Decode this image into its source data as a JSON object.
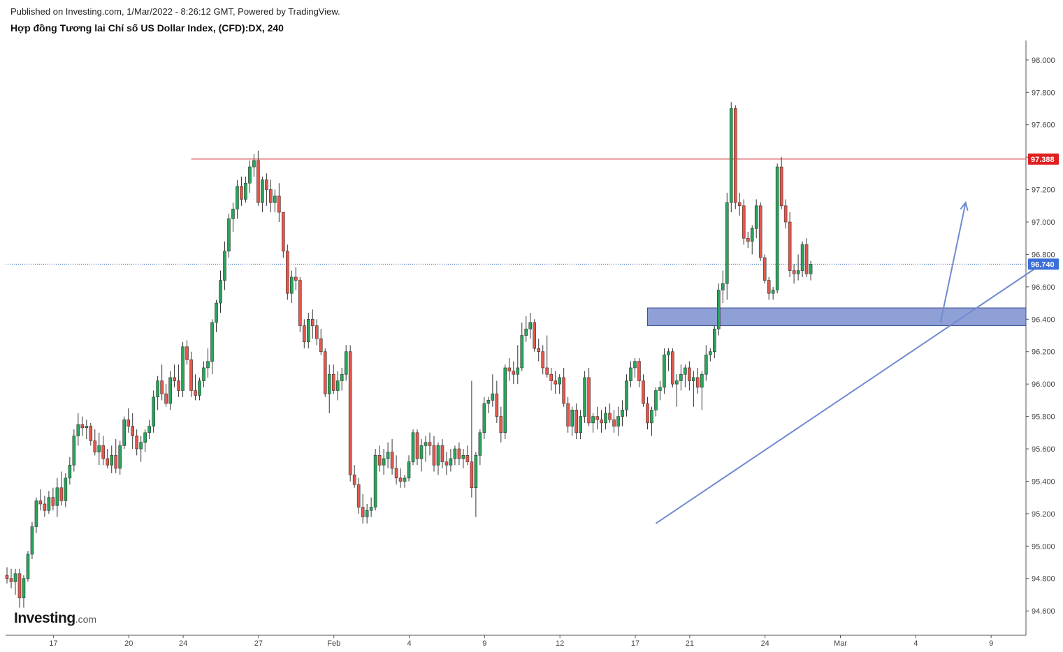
{
  "header": {
    "published": "Published on Investing.com, 1/Mar/2022 - 8:26:12 GMT, Powered by TradingView.",
    "title": "Hợp đồng Tương lai Chỉ số US Dollar Index, (CFD):DX, 240"
  },
  "logo": {
    "main": "Investing",
    "tld": ".com"
  },
  "colors": {
    "up": "#26a65b",
    "down": "#e8564b",
    "resistance_line": "#d32f2f",
    "current_price_line": "#2a5caa",
    "zone_fill": "#7b8fd0",
    "trendline": "#6f8bcf"
  },
  "chart_data": {
    "type": "candlestick",
    "symbol": "DX",
    "interval": "240",
    "ylim": [
      94.45,
      98.12
    ],
    "y_ticks": [
      94.6,
      94.8,
      95.0,
      95.2,
      95.4,
      95.6,
      95.8,
      96.0,
      96.2,
      96.4,
      96.6,
      96.8,
      97.0,
      97.2,
      97.4,
      97.6,
      97.8,
      98.0
    ],
    "y_tick_labels": [
      "94.600",
      "94.800",
      "95.000",
      "95.200",
      "95.400",
      "95.600",
      "95.800",
      "96.000",
      "96.200",
      "96.400",
      "96.600",
      "96.800",
      "97.000",
      "97.200",
      "97.400",
      "97.600",
      "97.800",
      "98.000"
    ],
    "x_tick_labels": [
      {
        "label": "17",
        "bar": 11
      },
      {
        "label": "20",
        "bar": 29
      },
      {
        "label": "24",
        "bar": 42
      },
      {
        "label": "27",
        "bar": 60
      },
      {
        "label": "Feb",
        "bar": 78
      },
      {
        "label": "4",
        "bar": 96
      },
      {
        "label": "9",
        "bar": 114
      },
      {
        "label": "12",
        "bar": 132
      },
      {
        "label": "17",
        "bar": 150
      },
      {
        "label": "21",
        "bar": 163
      },
      {
        "label": "24",
        "bar": 181
      },
      {
        "label": "Mar",
        "bar": 199
      },
      {
        "label": "4",
        "bar": 217
      },
      {
        "label": "9",
        "bar": 235
      }
    ],
    "candles_ohlc": [
      [
        94.82,
        94.87,
        94.77,
        94.8
      ],
      [
        94.8,
        94.86,
        94.74,
        94.78
      ],
      [
        94.78,
        94.86,
        94.7,
        94.83
      ],
      [
        94.83,
        94.86,
        94.62,
        94.68
      ],
      [
        94.68,
        94.82,
        94.62,
        94.8
      ],
      [
        94.8,
        94.97,
        94.78,
        94.95
      ],
      [
        94.95,
        95.15,
        94.92,
        95.12
      ],
      [
        95.12,
        95.3,
        95.08,
        95.28
      ],
      [
        95.28,
        95.35,
        95.22,
        95.26
      ],
      [
        95.26,
        95.31,
        95.18,
        95.22
      ],
      [
        95.22,
        95.34,
        95.2,
        95.3
      ],
      [
        95.3,
        95.36,
        95.22,
        95.25
      ],
      [
        95.25,
        95.42,
        95.18,
        95.36
      ],
      [
        95.36,
        95.46,
        95.25,
        95.28
      ],
      [
        95.28,
        95.45,
        95.24,
        95.42
      ],
      [
        95.42,
        95.55,
        95.38,
        95.5
      ],
      [
        95.5,
        95.72,
        95.46,
        95.68
      ],
      [
        95.68,
        95.82,
        95.62,
        95.75
      ],
      [
        95.75,
        95.8,
        95.68,
        95.73
      ],
      [
        95.73,
        95.78,
        95.66,
        95.74
      ],
      [
        95.74,
        95.76,
        95.62,
        95.65
      ],
      [
        95.65,
        95.72,
        95.56,
        95.58
      ],
      [
        95.58,
        95.7,
        95.5,
        95.62
      ],
      [
        95.62,
        95.68,
        95.5,
        95.54
      ],
      [
        95.54,
        95.6,
        95.48,
        95.5
      ],
      [
        95.5,
        95.62,
        95.45,
        95.56
      ],
      [
        95.56,
        95.66,
        95.45,
        95.48
      ],
      [
        95.48,
        95.65,
        95.44,
        95.62
      ],
      [
        95.62,
        95.8,
        95.6,
        95.78
      ],
      [
        95.78,
        95.85,
        95.7,
        95.74
      ],
      [
        95.74,
        95.82,
        95.6,
        95.68
      ],
      [
        95.68,
        95.72,
        95.56,
        95.6
      ],
      [
        95.6,
        95.68,
        95.52,
        95.64
      ],
      [
        95.64,
        95.72,
        95.58,
        95.7
      ],
      [
        95.7,
        95.78,
        95.66,
        95.74
      ],
      [
        95.74,
        95.96,
        95.7,
        95.92
      ],
      [
        95.92,
        96.05,
        95.84,
        96.02
      ],
      [
        96.02,
        96.12,
        95.9,
        95.94
      ],
      [
        95.94,
        96.0,
        95.86,
        95.88
      ],
      [
        95.88,
        96.08,
        95.84,
        96.04
      ],
      [
        96.04,
        96.12,
        95.98,
        96.02
      ],
      [
        96.02,
        96.12,
        95.92,
        95.96
      ],
      [
        95.96,
        96.26,
        95.92,
        96.23
      ],
      [
        96.23,
        96.27,
        96.12,
        96.15
      ],
      [
        96.15,
        96.2,
        95.92,
        95.96
      ],
      [
        95.96,
        96.06,
        95.9,
        95.93
      ],
      [
        95.93,
        96.04,
        95.9,
        96.02
      ],
      [
        96.02,
        96.14,
        95.98,
        96.1
      ],
      [
        96.1,
        96.22,
        96.04,
        96.14
      ],
      [
        96.14,
        96.4,
        96.06,
        96.38
      ],
      [
        96.38,
        96.52,
        96.32,
        96.5
      ],
      [
        96.5,
        96.7,
        96.44,
        96.64
      ],
      [
        96.64,
        96.88,
        96.58,
        96.82
      ],
      [
        96.82,
        97.05,
        96.78,
        97.02
      ],
      [
        97.02,
        97.12,
        96.94,
        97.08
      ],
      [
        97.08,
        97.26,
        97.02,
        97.22
      ],
      [
        97.22,
        97.28,
        97.1,
        97.14
      ],
      [
        97.14,
        97.28,
        97.12,
        97.24
      ],
      [
        97.24,
        97.38,
        97.18,
        97.34
      ],
      [
        97.34,
        97.42,
        97.28,
        97.38
      ],
      [
        97.38,
        97.44,
        97.1,
        97.12
      ],
      [
        97.12,
        97.28,
        97.06,
        97.26
      ],
      [
        97.26,
        97.3,
        97.1,
        97.2
      ],
      [
        97.2,
        97.26,
        97.06,
        97.12
      ],
      [
        97.12,
        97.2,
        97.06,
        97.16
      ],
      [
        97.16,
        97.24,
        97.0,
        97.06
      ],
      [
        97.06,
        96.94,
        96.78,
        96.82
      ],
      [
        96.82,
        96.86,
        96.52,
        96.56
      ],
      [
        96.56,
        96.7,
        96.5,
        96.66
      ],
      [
        96.66,
        96.72,
        96.58,
        96.64
      ],
      [
        96.64,
        96.66,
        96.32,
        96.36
      ],
      [
        96.36,
        96.4,
        96.22,
        96.26
      ],
      [
        96.26,
        96.44,
        96.22,
        96.4
      ],
      [
        96.4,
        96.46,
        96.28,
        96.36
      ],
      [
        96.36,
        96.4,
        96.24,
        96.28
      ],
      [
        96.28,
        96.34,
        96.18,
        96.2
      ],
      [
        96.2,
        96.22,
        95.92,
        95.94
      ],
      [
        95.94,
        96.12,
        95.82,
        96.06
      ],
      [
        96.06,
        96.12,
        95.94,
        95.96
      ],
      [
        95.96,
        96.08,
        95.9,
        96.02
      ],
      [
        96.02,
        96.1,
        95.96,
        96.06
      ],
      [
        96.06,
        96.24,
        96.02,
        96.2
      ],
      [
        96.2,
        96.24,
        95.4,
        95.44
      ],
      [
        95.44,
        95.5,
        95.36,
        95.38
      ],
      [
        95.38,
        95.42,
        95.2,
        95.24
      ],
      [
        95.24,
        95.32,
        95.14,
        95.18
      ],
      [
        95.18,
        95.26,
        95.14,
        95.22
      ],
      [
        95.22,
        95.3,
        95.18,
        95.24
      ],
      [
        95.24,
        95.6,
        95.22,
        95.56
      ],
      [
        95.56,
        95.62,
        95.46,
        95.5
      ],
      [
        95.5,
        95.6,
        95.44,
        95.54
      ],
      [
        95.54,
        95.64,
        95.48,
        95.58
      ],
      [
        95.58,
        95.66,
        95.44,
        95.48
      ],
      [
        95.48,
        95.56,
        95.38,
        95.42
      ],
      [
        95.42,
        95.48,
        95.36,
        95.4
      ],
      [
        95.4,
        95.44,
        95.36,
        95.42
      ],
      [
        95.42,
        95.56,
        95.4,
        95.52
      ],
      [
        95.52,
        95.72,
        95.5,
        95.7
      ],
      [
        95.7,
        95.72,
        95.5,
        95.54
      ],
      [
        95.54,
        95.66,
        95.46,
        95.62
      ],
      [
        95.62,
        95.68,
        95.52,
        95.64
      ],
      [
        95.64,
        95.7,
        95.56,
        95.62
      ],
      [
        95.62,
        95.68,
        95.46,
        95.5
      ],
      [
        95.5,
        95.64,
        95.44,
        95.62
      ],
      [
        95.62,
        95.66,
        95.48,
        95.52
      ],
      [
        95.52,
        95.58,
        95.44,
        95.5
      ],
      [
        95.5,
        95.6,
        95.46,
        95.54
      ],
      [
        95.54,
        95.62,
        95.5,
        95.6
      ],
      [
        95.6,
        95.64,
        95.5,
        95.54
      ],
      [
        95.54,
        95.6,
        95.48,
        95.56
      ],
      [
        95.56,
        95.62,
        95.5,
        95.52
      ],
      [
        95.52,
        96.02,
        95.3,
        95.36
      ],
      [
        95.36,
        95.58,
        95.18,
        95.56
      ],
      [
        95.56,
        95.72,
        95.5,
        95.7
      ],
      [
        95.7,
        95.92,
        95.66,
        95.88
      ],
      [
        95.88,
        95.92,
        95.82,
        95.9
      ],
      [
        95.9,
        96.06,
        95.86,
        95.94
      ],
      [
        95.94,
        96.02,
        95.76,
        95.8
      ],
      [
        95.8,
        95.86,
        95.64,
        95.7
      ],
      [
        95.7,
        96.12,
        95.66,
        96.1
      ],
      [
        96.1,
        96.16,
        96.02,
        96.08
      ],
      [
        96.08,
        96.14,
        96.0,
        96.06
      ],
      [
        96.06,
        96.24,
        96.0,
        96.1
      ],
      [
        96.1,
        96.38,
        96.08,
        96.3
      ],
      [
        96.3,
        96.42,
        96.26,
        96.34
      ],
      [
        96.34,
        96.44,
        96.28,
        96.38
      ],
      [
        96.38,
        96.4,
        96.2,
        96.22
      ],
      [
        96.22,
        96.28,
        96.14,
        96.2
      ],
      [
        96.2,
        96.24,
        96.06,
        96.1
      ],
      [
        96.1,
        96.3,
        96.04,
        96.06
      ],
      [
        96.06,
        96.1,
        95.96,
        96.02
      ],
      [
        96.02,
        96.08,
        95.94,
        96.0
      ],
      [
        96.0,
        96.06,
        95.94,
        96.04
      ],
      [
        96.04,
        96.1,
        95.86,
        95.88
      ],
      [
        95.88,
        95.92,
        95.7,
        95.74
      ],
      [
        95.74,
        95.86,
        95.68,
        95.84
      ],
      [
        95.84,
        95.88,
        95.66,
        95.7
      ],
      [
        95.7,
        95.84,
        95.66,
        95.8
      ],
      [
        95.8,
        96.08,
        95.76,
        96.04
      ],
      [
        96.04,
        96.1,
        95.74,
        95.76
      ],
      [
        95.76,
        95.82,
        95.7,
        95.8
      ],
      [
        95.8,
        95.86,
        95.72,
        95.78
      ],
      [
        95.78,
        95.84,
        95.7,
        95.76
      ],
      [
        95.76,
        95.86,
        95.72,
        95.82
      ],
      [
        95.82,
        95.88,
        95.76,
        95.78
      ],
      [
        95.78,
        95.84,
        95.7,
        95.74
      ],
      [
        95.74,
        95.86,
        95.68,
        95.8
      ],
      [
        95.8,
        95.9,
        95.74,
        95.84
      ],
      [
        95.84,
        96.06,
        95.8,
        96.02
      ],
      [
        96.02,
        96.14,
        95.98,
        96.1
      ],
      [
        96.1,
        96.16,
        96.04,
        96.14
      ],
      [
        96.14,
        96.16,
        95.98,
        96.02
      ],
      [
        96.02,
        96.06,
        95.86,
        95.88
      ],
      [
        95.88,
        95.92,
        95.72,
        95.76
      ],
      [
        95.76,
        95.86,
        95.68,
        95.84
      ],
      [
        95.84,
        95.98,
        95.8,
        95.96
      ],
      [
        95.96,
        96.02,
        95.9,
        95.98
      ],
      [
        95.98,
        96.22,
        95.94,
        96.18
      ],
      [
        96.18,
        96.22,
        96.08,
        96.2
      ],
      [
        96.2,
        96.22,
        95.98,
        96.0
      ],
      [
        96.0,
        96.06,
        95.86,
        96.02
      ],
      [
        96.02,
        96.12,
        95.96,
        96.06
      ],
      [
        96.06,
        96.12,
        95.98,
        96.1
      ],
      [
        96.1,
        96.14,
        95.96,
        96.02
      ],
      [
        96.02,
        96.08,
        95.86,
        96.04
      ],
      [
        96.04,
        96.1,
        95.94,
        95.98
      ],
      [
        95.98,
        96.08,
        95.84,
        96.06
      ],
      [
        96.06,
        96.24,
        96.02,
        96.18
      ],
      [
        96.18,
        96.22,
        96.14,
        96.2
      ],
      [
        96.2,
        96.36,
        96.16,
        96.34
      ],
      [
        96.34,
        96.62,
        96.3,
        96.58
      ],
      [
        96.58,
        96.7,
        96.5,
        96.62
      ],
      [
        96.62,
        97.18,
        96.52,
        97.12
      ],
      [
        97.12,
        97.74,
        97.06,
        97.7
      ],
      [
        97.7,
        97.72,
        97.08,
        97.12
      ],
      [
        97.12,
        97.18,
        97.04,
        97.1
      ],
      [
        97.1,
        97.14,
        96.86,
        96.9
      ],
      [
        96.9,
        96.94,
        96.84,
        96.88
      ],
      [
        96.88,
        96.98,
        96.8,
        96.96
      ],
      [
        96.96,
        97.14,
        96.9,
        97.1
      ],
      [
        97.1,
        97.12,
        96.76,
        96.78
      ],
      [
        96.78,
        96.8,
        96.62,
        96.64
      ],
      [
        96.64,
        96.66,
        96.52,
        96.56
      ],
      [
        96.56,
        96.6,
        96.52,
        96.58
      ],
      [
        96.58,
        97.36,
        96.56,
        97.34
      ],
      [
        97.34,
        97.4,
        97.08,
        97.1
      ],
      [
        97.1,
        97.14,
        96.96,
        97.0
      ],
      [
        97.0,
        97.06,
        96.66,
        96.7
      ],
      [
        96.7,
        96.74,
        96.62,
        96.68
      ],
      [
        96.68,
        96.8,
        96.64,
        96.7
      ],
      [
        96.7,
        96.88,
        96.66,
        96.86
      ],
      [
        96.86,
        96.9,
        96.66,
        96.68
      ],
      [
        96.68,
        96.76,
        96.64,
        96.74
      ]
    ],
    "current_price": 96.74,
    "current_price_label": "96.740",
    "resistance_price": 97.388,
    "resistance_label": "97.388",
    "resistance_start_bar": 44,
    "zone": {
      "from_bar": 153,
      "y_low": 96.36,
      "y_high": 96.47
    },
    "trendline": {
      "from": {
        "bar": 155,
        "y": 95.14
      },
      "to": {
        "bar": 246,
        "y": 96.72
      }
    },
    "projection_arrow": {
      "from": {
        "bar": 223,
        "y": 96.38
      },
      "to": {
        "bar": 229,
        "y": 97.12
      }
    }
  }
}
